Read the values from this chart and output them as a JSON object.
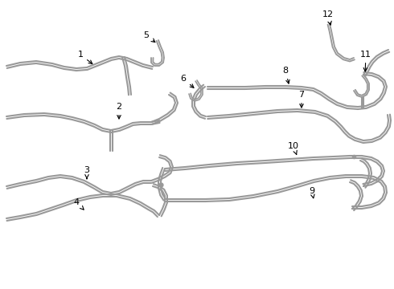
{
  "bg_color": "#ffffff",
  "line_color": "#999999",
  "line_width": 1.5,
  "label_color": "#000000",
  "label_fontsize": 8,
  "figw": 4.9,
  "figh": 3.6,
  "dpi": 100
}
